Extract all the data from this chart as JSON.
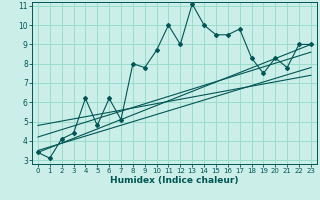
{
  "title": "",
  "xlabel": "Humidex (Indice chaleur)",
  "bg_color": "#cceee8",
  "grid_color": "#99ddcc",
  "line_color": "#005555",
  "xlim": [
    -0.5,
    23.5
  ],
  "ylim": [
    2.8,
    11.2
  ],
  "xticks": [
    0,
    1,
    2,
    3,
    4,
    5,
    6,
    7,
    8,
    9,
    10,
    11,
    12,
    13,
    14,
    15,
    16,
    17,
    18,
    19,
    20,
    21,
    22,
    23
  ],
  "yticks": [
    3,
    4,
    5,
    6,
    7,
    8,
    9,
    10,
    11
  ],
  "main_x": [
    0,
    1,
    2,
    3,
    4,
    5,
    6,
    7,
    8,
    9,
    10,
    11,
    12,
    13,
    14,
    15,
    16,
    17,
    18,
    19,
    20,
    21,
    22,
    23
  ],
  "main_y": [
    3.4,
    3.1,
    4.1,
    4.4,
    6.2,
    4.8,
    6.2,
    5.1,
    8.0,
    7.8,
    8.7,
    10.0,
    9.0,
    11.1,
    10.0,
    9.5,
    9.5,
    9.8,
    8.3,
    7.5,
    8.3,
    7.8,
    9.0,
    9.0
  ],
  "line2_x": [
    0,
    23
  ],
  "line2_y": [
    3.4,
    9.0
  ],
  "trend1_x": [
    0,
    23
  ],
  "trend1_y": [
    3.5,
    7.8
  ],
  "trend2_x": [
    0,
    23
  ],
  "trend2_y": [
    4.2,
    8.6
  ],
  "trend3_x": [
    0,
    23
  ],
  "trend3_y": [
    4.8,
    7.4
  ]
}
